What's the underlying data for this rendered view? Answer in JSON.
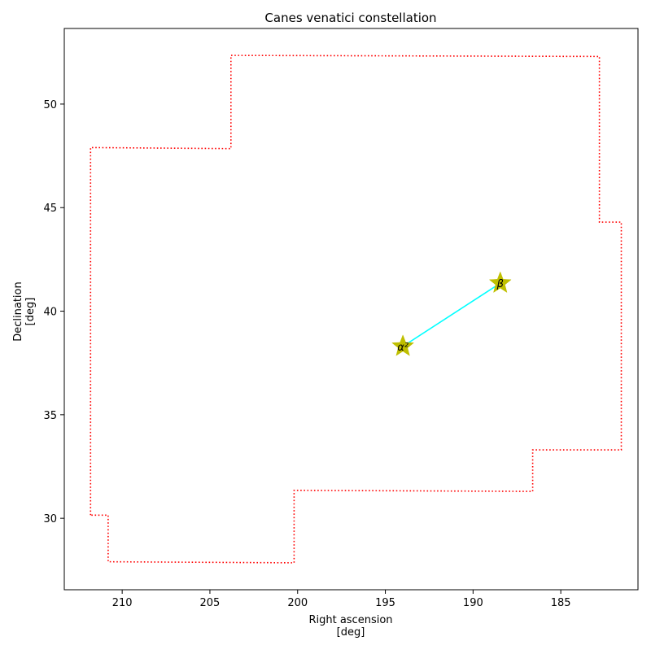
{
  "chart_data": {
    "type": "scatter",
    "title": "Canes venatici constellation",
    "xlabel": [
      "Right ascension",
      "[deg]"
    ],
    "ylabel": [
      "Declination",
      "[deg]"
    ],
    "xlim": [
      213.3,
      180.6
    ],
    "ylim": [
      26.55,
      53.65
    ],
    "x_inverted": true,
    "grid": false,
    "xticks": [
      210,
      205,
      200,
      195,
      190,
      185
    ],
    "yticks": [
      30,
      35,
      40,
      45,
      50
    ],
    "boundary": {
      "color": "#ff0000",
      "style": "dotted",
      "points": [
        [
          211.8,
          30.15
        ],
        [
          211.8,
          47.9
        ],
        [
          203.8,
          47.85
        ],
        [
          203.8,
          52.35
        ],
        [
          182.8,
          52.3
        ],
        [
          182.8,
          44.3
        ],
        [
          181.55,
          44.3
        ],
        [
          181.55,
          33.3
        ],
        [
          186.6,
          33.3
        ],
        [
          186.6,
          31.3
        ],
        [
          200.2,
          31.35
        ],
        [
          200.2,
          27.85
        ],
        [
          210.8,
          27.9
        ],
        [
          210.8,
          30.15
        ],
        [
          211.8,
          30.15
        ]
      ]
    },
    "stars": [
      {
        "label": "α²",
        "x": 194.0,
        "y": 38.3,
        "color": "#bfbf00"
      },
      {
        "label": "β",
        "x": 188.45,
        "y": 41.35,
        "color": "#bfbf00"
      }
    ],
    "lines": [
      {
        "from": 0,
        "to": 1,
        "color": "#00ffff"
      }
    ]
  }
}
